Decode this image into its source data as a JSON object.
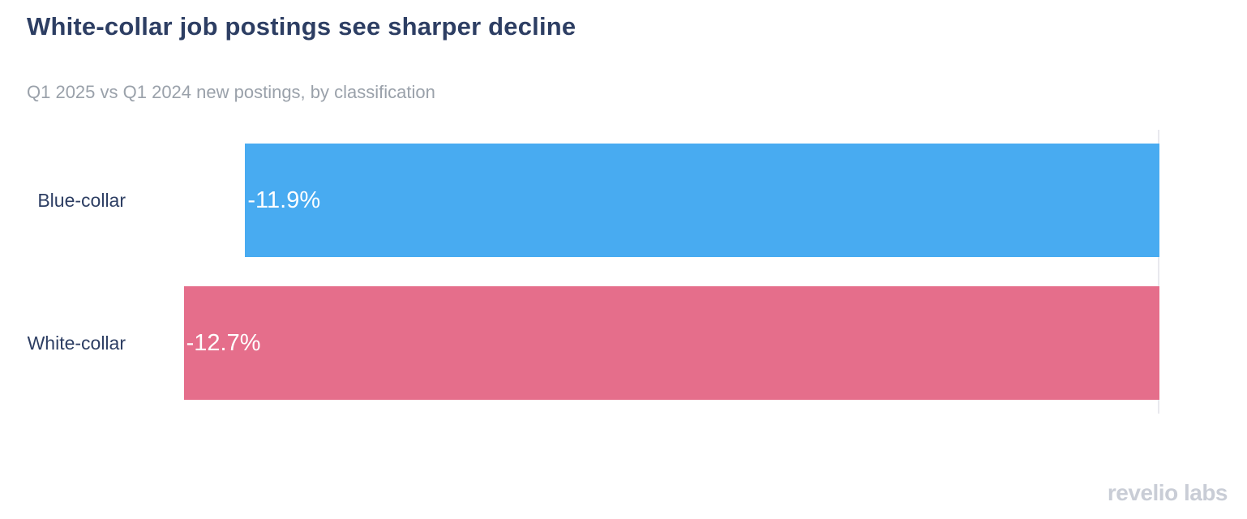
{
  "header": {
    "title": "White-collar job postings see sharper decline",
    "subtitle": "Q1 2025 vs Q1 2024 new postings, by classification"
  },
  "chart_data": {
    "type": "bar",
    "orientation": "horizontal",
    "title": "White-collar job postings see sharper decline",
    "subtitle": "Q1 2025 vs Q1 2024 new postings, by classification",
    "categories": [
      "Blue-collar",
      "White-collar"
    ],
    "values": [
      -11.9,
      -12.7
    ],
    "value_labels": [
      "-11.9%",
      "-12.7%"
    ],
    "bar_colors": [
      "#48abf1",
      "#e56e8b"
    ],
    "xlabel": "",
    "ylabel": "",
    "xlim": [
      -13.35,
      0
    ],
    "grid": false,
    "legend": false,
    "value_label_position": "inside-start",
    "zero_axis": "right"
  },
  "footer": {
    "logo_text": "revelio labs"
  },
  "colors": {
    "title": "#2d3e63",
    "subtitle": "#9aa1aa",
    "axis_line": "#e9e9ee",
    "value_label": "#ffffff",
    "logo": "#c9cdd6",
    "background": "#ffffff"
  }
}
